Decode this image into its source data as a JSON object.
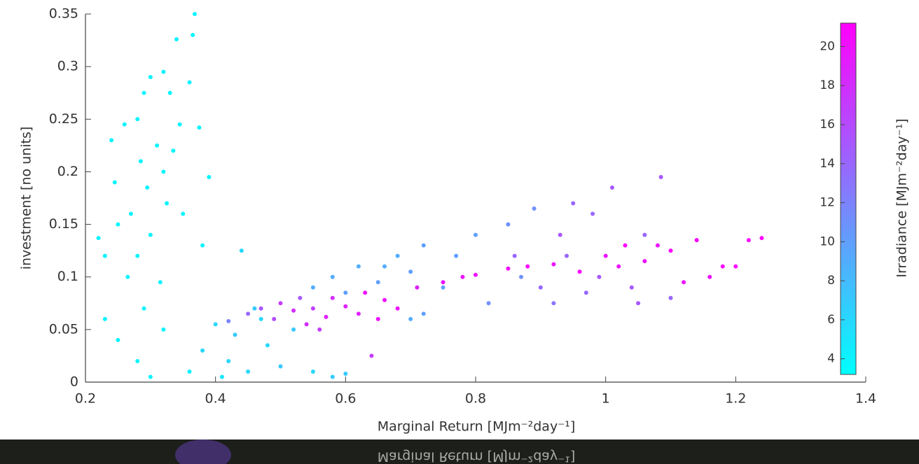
{
  "chart_data": {
    "type": "scatter",
    "x_label": "Marginal Return [MJm⁻²day⁻¹]",
    "y_label": "investment [no units]",
    "colorbar_label": "Irradiance [MJm⁻²day⁻¹]",
    "xlim": [
      0.2,
      1.4
    ],
    "xticks": [
      0.2,
      0.4,
      0.6,
      0.8,
      1,
      1.2,
      1.4
    ],
    "ylim": [
      0,
      0.35
    ],
    "yticks": [
      0,
      0.05,
      0.1,
      0.15,
      0.2,
      0.25,
      0.3,
      0.35
    ],
    "clim": [
      3.2,
      21.2
    ],
    "cticks": [
      4,
      6,
      8,
      10,
      12,
      14,
      16,
      18,
      20
    ],
    "colormap": [
      "#00ffff",
      "#ff00ff"
    ],
    "x": [
      0.22,
      0.23,
      0.24,
      0.245,
      0.25,
      0.26,
      0.265,
      0.27,
      0.28,
      0.28,
      0.285,
      0.29,
      0.29,
      0.295,
      0.3,
      0.3,
      0.31,
      0.315,
      0.32,
      0.32,
      0.325,
      0.33,
      0.335,
      0.34,
      0.345,
      0.35,
      0.36,
      0.365,
      0.368,
      0.375,
      0.38,
      0.39,
      0.23,
      0.25,
      0.28,
      0.32,
      0.3,
      0.36,
      0.38,
      0.4,
      0.42,
      0.43,
      0.45,
      0.46,
      0.48,
      0.5,
      0.52,
      0.55,
      0.58,
      0.6,
      0.44,
      0.47,
      0.41,
      0.42,
      0.45,
      0.47,
      0.49,
      0.5,
      0.52,
      0.54,
      0.55,
      0.57,
      0.58,
      0.6,
      0.62,
      0.63,
      0.65,
      0.66,
      0.68,
      0.64,
      0.53,
      0.56,
      0.55,
      0.58,
      0.6,
      0.62,
      0.65,
      0.68,
      0.7,
      0.72,
      0.75,
      0.77,
      0.8,
      0.82,
      0.85,
      0.87,
      0.89,
      0.72,
      0.66,
      0.7,
      0.71,
      0.75,
      0.78,
      0.8,
      0.85,
      0.88,
      0.92,
      0.96,
      1.0,
      1.03,
      1.06,
      1.1,
      1.12,
      1.16,
      1.18,
      1.2,
      1.22,
      1.24,
      1.08,
      1.14,
      1.02,
      0.86,
      0.9,
      0.93,
      0.95,
      0.97,
      0.99,
      1.01,
      1.04,
      1.06,
      1.085,
      1.1,
      0.98,
      0.92,
      1.05,
      0.94
    ],
    "y": [
      0.137,
      0.12,
      0.23,
      0.19,
      0.15,
      0.245,
      0.1,
      0.16,
      0.25,
      0.12,
      0.21,
      0.275,
      0.07,
      0.185,
      0.29,
      0.14,
      0.225,
      0.095,
      0.295,
      0.2,
      0.17,
      0.275,
      0.22,
      0.326,
      0.245,
      0.16,
      0.285,
      0.33,
      0.35,
      0.242,
      0.13,
      0.195,
      0.06,
      0.04,
      0.02,
      0.05,
      0.005,
      0.01,
      0.03,
      0.055,
      0.02,
      0.045,
      0.01,
      0.07,
      0.035,
      0.015,
      0.05,
      0.01,
      0.005,
      0.008,
      0.125,
      0.06,
      0.005,
      0.058,
      0.065,
      0.07,
      0.06,
      0.075,
      0.068,
      0.055,
      0.07,
      0.062,
      0.08,
      0.072,
      0.065,
      0.085,
      0.06,
      0.078,
      0.07,
      0.025,
      0.08,
      0.05,
      0.09,
      0.1,
      0.085,
      0.11,
      0.095,
      0.12,
      0.105,
      0.13,
      0.09,
      0.12,
      0.14,
      0.075,
      0.15,
      0.1,
      0.165,
      0.065,
      0.11,
      0.06,
      0.09,
      0.095,
      0.1,
      0.102,
      0.108,
      0.11,
      0.112,
      0.105,
      0.12,
      0.13,
      0.115,
      0.125,
      0.095,
      0.1,
      0.11,
      0.11,
      0.135,
      0.137,
      0.13,
      0.135,
      0.11,
      0.12,
      0.09,
      0.14,
      0.17,
      0.085,
      0.1,
      0.185,
      0.09,
      0.14,
      0.195,
      0.08,
      0.16,
      0.075,
      0.075,
      0.12
    ],
    "c": [
      4,
      4,
      4,
      4,
      4,
      4,
      4,
      4,
      4,
      4,
      4,
      4,
      4,
      4,
      4,
      4,
      4,
      4,
      4,
      4,
      4,
      4,
      4,
      4,
      4,
      4,
      4,
      4,
      4,
      4,
      4,
      4,
      4,
      4,
      4,
      4,
      4,
      4,
      6,
      6,
      6,
      7,
      6,
      7,
      6,
      7,
      7,
      6,
      7,
      7,
      6,
      6,
      5,
      12,
      14,
      15,
      16,
      17,
      18,
      18,
      17,
      19,
      18,
      19,
      19,
      20,
      20,
      20,
      20,
      17,
      15,
      17,
      9,
      9,
      10,
      9,
      10,
      9,
      10,
      10,
      10,
      10,
      10,
      11,
      11,
      11,
      11,
      10,
      9,
      9,
      19,
      20,
      20,
      20,
      20,
      21,
      20,
      21,
      20,
      21,
      20,
      21,
      20,
      20,
      21,
      21,
      21,
      21,
      20,
      21,
      20,
      14,
      14,
      15,
      14,
      14,
      15,
      15,
      15,
      14,
      15,
      14,
      14,
      13,
      15,
      14
    ]
  }
}
